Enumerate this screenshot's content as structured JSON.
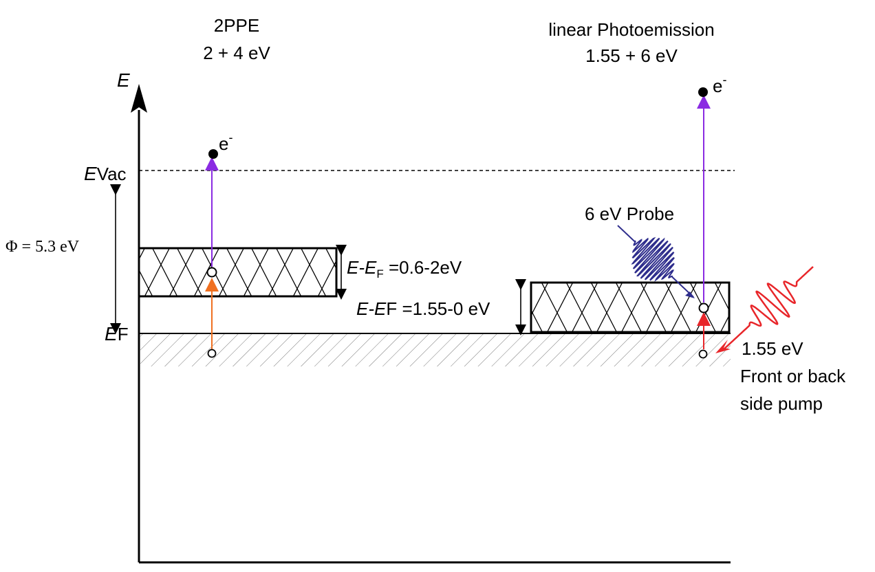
{
  "left_panel": {
    "title": "2PPE",
    "photon_energies": "2 + 4 eV"
  },
  "right_panel": {
    "title": "linear Photoemission",
    "photon_energies": "1.55 + 6 eV"
  },
  "axis": {
    "energy_symbol": "E",
    "vacuum_symbol": "E",
    "vacuum_subscript": "Vac",
    "fermi_symbol": "E",
    "fermi_subscript": "F"
  },
  "work_function": "Φ = 5.3 eV",
  "electron": {
    "symbol": "e",
    "charge": "-"
  },
  "left_band": {
    "label_prefix": "E-E",
    "label_subscript": "F",
    "label_value": " =0.6-2eV"
  },
  "right_band": {
    "label_prefix": "E-E",
    "label_subscript": "F",
    "label_value": " =1.55-0 eV"
  },
  "probe": {
    "label": "6 eV Probe",
    "color": "#2e2d8c"
  },
  "pump": {
    "energy": "1.55 eV",
    "line1": "Front or back",
    "line2": "side pump",
    "color": "#e8262a"
  },
  "colors": {
    "uv_arrow": "#8a2be2",
    "visible_arrow": "#f07020",
    "pump_arrow": "#e8262a",
    "probe_pulse": "#2e2d8c"
  }
}
